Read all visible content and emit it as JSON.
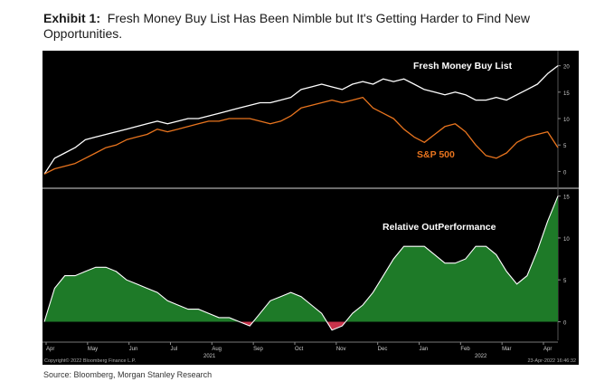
{
  "header": {
    "exhibit_label": "Exhibit 1:",
    "title": "Fresh Money Buy List Has Been Nimble but It's Getting Harder to Find New Opportunities."
  },
  "footer": {
    "source": "Source: Bloomberg, Morgan Stanley Research"
  },
  "chart_footer": {
    "copyright": "Copyright© 2022 Bloomberg Finance L.P.",
    "timestamp": "23-Apr-2022 16:46:32"
  },
  "colors": {
    "background": "#000000",
    "fresh_money": "#ffffff",
    "sp500": "#e8741e",
    "outperformance_positive": "#1e7a28",
    "outperformance_negative": "#c8324a"
  },
  "chart_data": [
    {
      "type": "line",
      "title": "",
      "annotations": [
        "Fresh Money Buy List",
        "S&P 500"
      ],
      "y_ticks": [
        0,
        5,
        10,
        15,
        20
      ],
      "ylim": [
        -2.5,
        22.5
      ],
      "x": [
        0,
        2,
        4,
        6,
        8,
        10,
        12,
        14,
        16,
        18,
        20,
        22,
        24,
        26,
        28,
        30,
        32,
        34,
        36,
        38,
        40,
        42,
        44,
        46,
        48,
        50,
        52,
        54,
        56,
        58,
        60,
        62,
        64,
        66,
        68,
        70,
        72,
        74,
        76,
        78,
        80,
        82,
        84,
        86,
        88,
        90,
        92,
        94,
        96,
        98,
        100
      ],
      "series": [
        {
          "name": "Fresh Money Buy List",
          "color": "#ffffff",
          "values": [
            -0.5,
            2.5,
            3.5,
            4.5,
            6.0,
            6.5,
            7.0,
            7.5,
            8.0,
            8.5,
            9.0,
            9.5,
            9.0,
            9.5,
            10.0,
            10.0,
            10.5,
            11.0,
            11.5,
            12.0,
            12.5,
            13.0,
            13.0,
            13.5,
            14.0,
            15.5,
            16.0,
            16.5,
            16.0,
            15.5,
            16.5,
            17.0,
            16.5,
            17.5,
            17.0,
            17.5,
            16.5,
            15.5,
            15.0,
            14.5,
            15.0,
            14.5,
            13.5,
            13.5,
            14.0,
            13.5,
            14.5,
            15.5,
            16.5,
            18.5,
            20.0
          ]
        },
        {
          "name": "S&P 500",
          "color": "#e8741e",
          "values": [
            -0.5,
            0.5,
            1.0,
            1.5,
            2.5,
            3.5,
            4.5,
            5.0,
            6.0,
            6.5,
            7.0,
            8.0,
            7.5,
            8.0,
            8.5,
            9.0,
            9.5,
            9.5,
            10.0,
            10.0,
            10.0,
            9.5,
            9.0,
            9.5,
            10.5,
            12.0,
            12.5,
            13.0,
            13.5,
            13.0,
            13.5,
            14.0,
            12.0,
            11.0,
            10.0,
            8.0,
            6.5,
            5.5,
            7.0,
            8.5,
            9.0,
            7.5,
            5.0,
            3.0,
            2.5,
            3.5,
            5.5,
            6.5,
            7.0,
            7.5,
            4.5
          ]
        }
      ]
    },
    {
      "type": "area",
      "title": "",
      "annotations": [
        "Relative OutPerformance"
      ],
      "y_ticks": [
        0,
        5,
        10,
        15
      ],
      "ylim": [
        -2,
        15.5
      ],
      "x": [
        0,
        2,
        4,
        6,
        8,
        10,
        12,
        14,
        16,
        18,
        20,
        22,
        24,
        26,
        28,
        30,
        32,
        34,
        36,
        38,
        40,
        42,
        44,
        46,
        48,
        50,
        52,
        54,
        56,
        58,
        60,
        62,
        64,
        66,
        68,
        70,
        72,
        74,
        76,
        78,
        80,
        82,
        84,
        86,
        88,
        90,
        92,
        94,
        96,
        98,
        100
      ],
      "x_tick_labels": [
        "Apr",
        "May",
        "Jun",
        "Jul",
        "Aug",
        "Sep",
        "Oct",
        "Nov",
        "Dec",
        "Jan",
        "Feb",
        "Mar",
        "Apr"
      ],
      "year_labels": [
        "2021",
        "2022"
      ],
      "series": [
        {
          "name": "Relative OutPerformance",
          "values": [
            0.0,
            4.0,
            5.5,
            5.5,
            6.0,
            6.5,
            6.5,
            6.0,
            5.0,
            4.5,
            4.0,
            3.5,
            2.5,
            2.0,
            1.5,
            1.5,
            1.0,
            0.5,
            0.5,
            0.0,
            -0.5,
            1.0,
            2.5,
            3.0,
            3.5,
            3.0,
            2.0,
            1.0,
            -1.0,
            -0.5,
            1.0,
            2.0,
            3.5,
            5.5,
            7.5,
            9.0,
            9.0,
            9.0,
            8.0,
            7.0,
            7.0,
            7.5,
            9.0,
            9.0,
            8.0,
            6.0,
            4.5,
            5.5,
            8.5,
            12.0,
            15.0
          ]
        }
      ]
    }
  ]
}
